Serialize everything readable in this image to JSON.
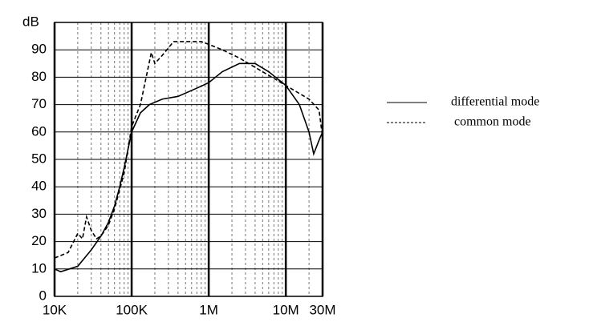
{
  "chart_data": {
    "type": "line",
    "y_label": "dB",
    "xscale": "log",
    "xlim": [
      10000,
      30000000
    ],
    "xticks": [
      {
        "value": 10000,
        "label": "10K"
      },
      {
        "value": 100000,
        "label": "100K"
      },
      {
        "value": 1000000,
        "label": "1M"
      },
      {
        "value": 10000000,
        "label": "10M"
      },
      {
        "value": 30000000,
        "label": "30M"
      }
    ],
    "ylim": [
      0,
      100
    ],
    "yticks": [
      0,
      10,
      20,
      30,
      40,
      50,
      60,
      70,
      80,
      90
    ],
    "grid": true,
    "minor_grid": true,
    "legend": "right",
    "series": [
      {
        "name": "differential mode",
        "color": "#000000",
        "dash": false,
        "x": [
          10000,
          12000,
          20000,
          30000,
          40000,
          50000,
          60000,
          70000,
          80000,
          100000,
          130000,
          170000,
          250000,
          400000,
          700000,
          1000000,
          1500000,
          2500000,
          4000000,
          6000000,
          10000000,
          15000000,
          20000000,
          23000000,
          27000000,
          30000000
        ],
        "values": [
          10,
          9,
          11,
          17,
          22,
          27,
          33,
          40,
          47,
          60,
          67,
          70,
          72,
          73,
          76,
          78,
          82,
          85,
          85,
          82,
          77,
          70,
          60,
          52,
          57,
          60
        ]
      },
      {
        "name": "common mode",
        "color": "#000000",
        "dash": true,
        "x": [
          10000,
          15000,
          20000,
          23000,
          26000,
          30000,
          35000,
          40000,
          50000,
          60000,
          80000,
          100000,
          130000,
          180000,
          200000,
          250000,
          350000,
          500000,
          800000,
          1000000,
          1500000,
          2500000,
          5000000,
          10000000,
          20000000,
          27000000,
          30000000
        ],
        "values": [
          14,
          16,
          23,
          21,
          29,
          24,
          21,
          22,
          26,
          32,
          45,
          62,
          70,
          89,
          85,
          88,
          93,
          93,
          93,
          92,
          90,
          87,
          82,
          77,
          72,
          68,
          58
        ]
      }
    ]
  }
}
